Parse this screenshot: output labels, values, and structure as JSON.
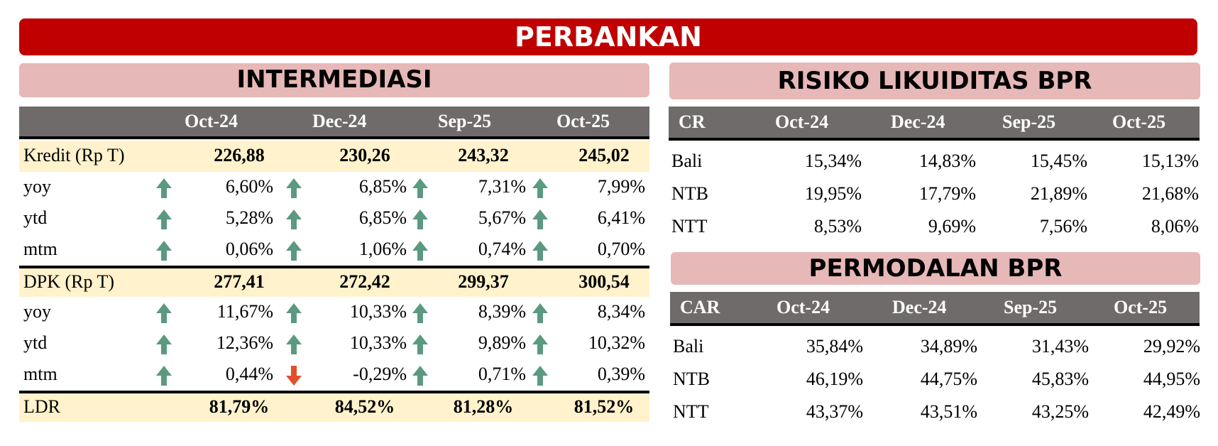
{
  "title": "PERBANKAN",
  "intermediasi": {
    "title": "INTERMEDIASI",
    "periods": [
      "Oct-24",
      "Dec-24",
      "Sep-25",
      "Oct-25"
    ],
    "kredit": {
      "label": "Kredit (Rp T)",
      "values": [
        "226,88",
        "230,26",
        "243,32",
        "245,02"
      ],
      "sub": [
        {
          "label": "yoy",
          "values": [
            "6,60%",
            "6,85%",
            "7,31%",
            "7,99%"
          ],
          "trend": [
            "up",
            "up",
            "up",
            "up"
          ]
        },
        {
          "label": "ytd",
          "values": [
            "5,28%",
            "6,85%",
            "5,67%",
            "6,41%"
          ],
          "trend": [
            "up",
            "up",
            "up",
            "up"
          ]
        },
        {
          "label": "mtm",
          "values": [
            "0,06%",
            "1,06%",
            "0,74%",
            "0,70%"
          ],
          "trend": [
            "up",
            "up",
            "up",
            "up"
          ]
        }
      ]
    },
    "dpk": {
      "label": "DPK (Rp T)",
      "values": [
        "277,41",
        "272,42",
        "299,37",
        "300,54"
      ],
      "sub": [
        {
          "label": "yoy",
          "values": [
            "11,67%",
            "10,33%",
            "8,39%",
            "8,34%"
          ],
          "trend": [
            "up",
            "up",
            "up",
            "up"
          ]
        },
        {
          "label": "ytd",
          "values": [
            "12,36%",
            "10,33%",
            "9,89%",
            "10,32%"
          ],
          "trend": [
            "up",
            "up",
            "up",
            "up"
          ]
        },
        {
          "label": "mtm",
          "values": [
            "0,44%",
            "-0,29%",
            "0,71%",
            "0,39%"
          ],
          "trend": [
            "up",
            "down",
            "up",
            "up"
          ]
        }
      ]
    },
    "ldr": {
      "label": "LDR",
      "values": [
        "81,79%",
        "84,52%",
        "81,28%",
        "81,52%"
      ]
    }
  },
  "likuiditas": {
    "title": "RISIKO LIKUIDITAS BPR",
    "header": [
      "CR",
      "Oct-24",
      "Dec-24",
      "Sep-25",
      "Oct-25"
    ],
    "rows": [
      {
        "label": "Bali",
        "values": [
          "15,34%",
          "14,83%",
          "15,45%",
          "15,13%"
        ]
      },
      {
        "label": "NTB",
        "values": [
          "19,95%",
          "17,79%",
          "21,89%",
          "21,68%"
        ]
      },
      {
        "label": "NTT",
        "values": [
          "8,53%",
          "9,69%",
          "7,56%",
          "8,06%"
        ]
      }
    ]
  },
  "permodalan": {
    "title": "PERMODALAN BPR",
    "header": [
      "CAR",
      "Oct-24",
      "Dec-24",
      "Sep-25",
      "Oct-25"
    ],
    "rows": [
      {
        "label": "Bali",
        "values": [
          "35,84%",
          "34,89%",
          "31,43%",
          "29,92%"
        ]
      },
      {
        "label": "NTB",
        "values": [
          "46,19%",
          "44,75%",
          "45,83%",
          "44,95%"
        ]
      },
      {
        "label": "NTT",
        "values": [
          "43,37%",
          "43,51%",
          "43,25%",
          "42,49%"
        ]
      }
    ]
  },
  "colors": {
    "banner": "#c00000",
    "section": "#e6b8b7",
    "header": "#6f6b6b",
    "highlight": "#fff2cc",
    "up": "#5b9a80",
    "down": "#e0512b"
  }
}
